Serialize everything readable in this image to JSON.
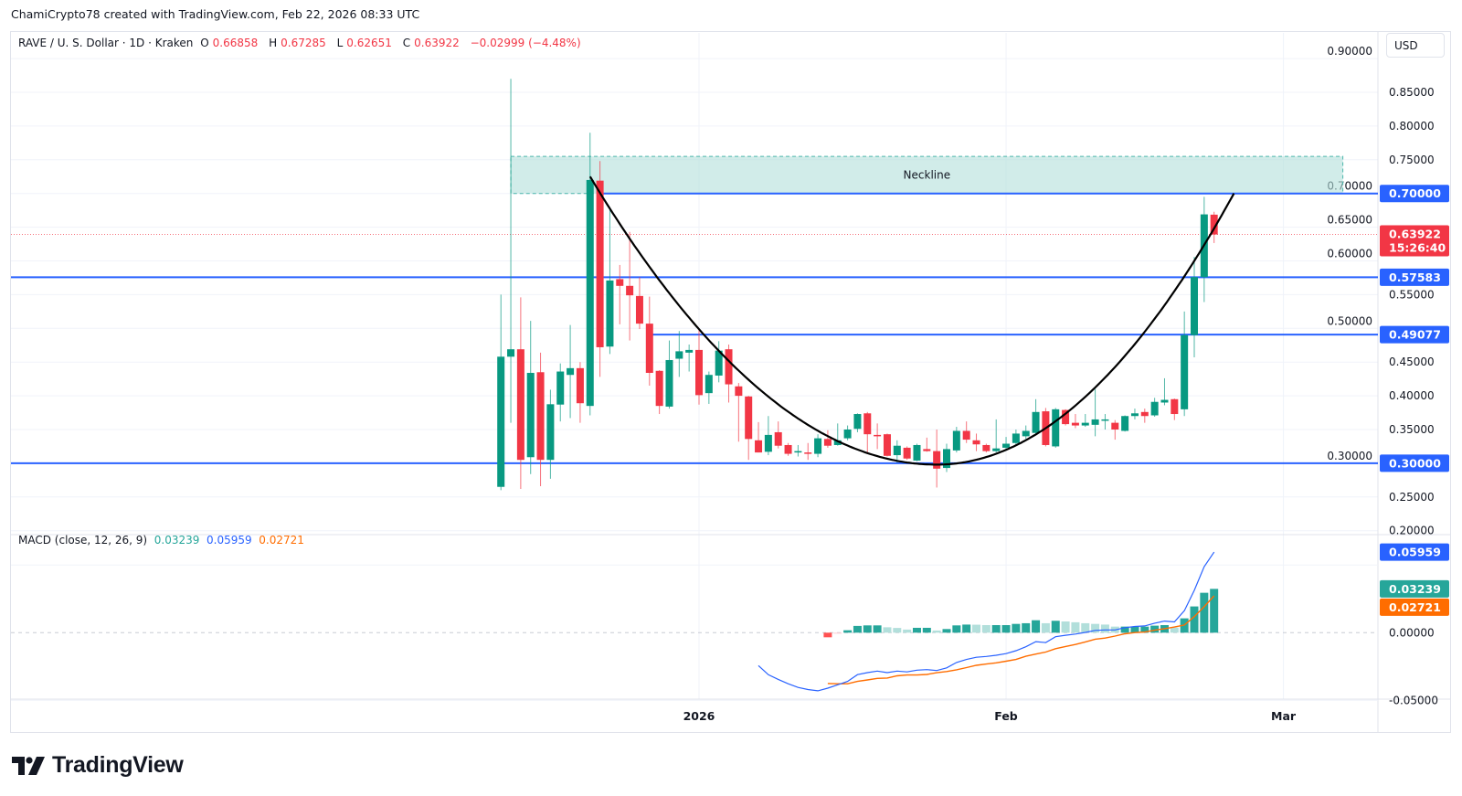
{
  "credit": "ChamiCrypto78 created with TradingView.com, Feb 22, 2026 08:33 UTC",
  "legend": {
    "symbol": "RAVE / U. S. Dollar · 1D · Kraken",
    "o_label": "O",
    "o": "0.66858",
    "h_label": "H",
    "h": "0.67285",
    "l_label": "L",
    "l": "0.62651",
    "c_label": "C",
    "c": "0.63922",
    "change": "−0.02999 (−4.48%)"
  },
  "currency_button": "USD",
  "macd_legend": {
    "title": "MACD (close, 12, 26, 9)",
    "histogram": "0.03239",
    "macd": "0.05959",
    "signal": "0.02721"
  },
  "logo_text": "TradingView",
  "colors": {
    "up": "#089981",
    "down": "#f23645",
    "level": "#2962ff",
    "macd": "#2962ff",
    "signal": "#ff6d00",
    "zone": "#b2dfdb"
  },
  "chart_data": [
    {
      "type": "candlestick",
      "title": "RAVE / U. S. Dollar · 1D · Kraken",
      "ylim": [
        0.2,
        0.9
      ],
      "y_ticks": [
        "0.90000",
        "0.85000",
        "0.80000",
        "0.75000",
        "0.70000",
        "0.65000",
        "0.60000",
        "0.55000",
        "0.50000",
        "0.45000",
        "0.40000",
        "0.35000",
        "0.30000",
        "0.25000",
        "0.20000"
      ],
      "x_ticks": [
        {
          "label": "2026",
          "date": "2026-01-01"
        },
        {
          "label": "Feb",
          "date": "2026-02-01"
        },
        {
          "label": "Mar",
          "date": "2026-03-01"
        }
      ],
      "grid": true,
      "fields": [
        "date",
        "open",
        "high",
        "low",
        "close"
      ],
      "candles": [
        [
          "2025-12-12",
          0.265,
          0.55,
          0.26,
          0.458
        ],
        [
          "2025-12-13",
          0.458,
          0.87,
          0.36,
          0.469
        ],
        [
          "2025-12-14",
          0.469,
          0.546,
          0.262,
          0.305
        ],
        [
          "2025-12-15",
          0.309,
          0.511,
          0.284,
          0.434
        ],
        [
          "2025-12-16",
          0.435,
          0.464,
          0.266,
          0.305
        ],
        [
          "2025-12-17",
          0.305,
          0.409,
          0.277,
          0.3875
        ],
        [
          "2025-12-18",
          0.387,
          0.448,
          0.362,
          0.436
        ],
        [
          "2025-12-19",
          0.431,
          0.505,
          0.367,
          0.441
        ],
        [
          "2025-12-20",
          0.441,
          0.45,
          0.36,
          0.389
        ],
        [
          "2025-12-21",
          0.385,
          0.79,
          0.371,
          0.72
        ],
        [
          "2025-12-22",
          0.719,
          0.748,
          0.428,
          0.472
        ],
        [
          "2025-12-23",
          0.473,
          0.68,
          0.462,
          0.571
        ],
        [
          "2025-12-24",
          0.573,
          0.594,
          0.506,
          0.563
        ],
        [
          "2025-12-25",
          0.563,
          0.643,
          0.482,
          0.549
        ],
        [
          "2025-12-26",
          0.548,
          0.576,
          0.499,
          0.507
        ],
        [
          "2025-12-27",
          0.507,
          0.547,
          0.415,
          0.434
        ],
        [
          "2025-12-28",
          0.437,
          0.438,
          0.373,
          0.385
        ],
        [
          "2025-12-29",
          0.384,
          0.482,
          0.381,
          0.453
        ],
        [
          "2025-12-30",
          0.455,
          0.496,
          0.428,
          0.466
        ],
        [
          "2025-12-31",
          0.464,
          0.476,
          0.436,
          0.468
        ],
        [
          "2026-01-01",
          0.468,
          0.498,
          0.387,
          0.401
        ],
        [
          "2026-01-02",
          0.404,
          0.436,
          0.388,
          0.431
        ],
        [
          "2026-01-03",
          0.43,
          0.481,
          0.42,
          0.467
        ],
        [
          "2026-01-04",
          0.469,
          0.476,
          0.39,
          0.417
        ],
        [
          "2026-01-05",
          0.414,
          0.419,
          0.332,
          0.4
        ],
        [
          "2026-01-06",
          0.399,
          0.4,
          0.305,
          0.336
        ],
        [
          "2026-01-07",
          0.334,
          0.361,
          0.316,
          0.316
        ],
        [
          "2026-01-08",
          0.317,
          0.37,
          0.312,
          0.342
        ],
        [
          "2026-01-09",
          0.346,
          0.362,
          0.322,
          0.326
        ],
        [
          "2026-01-10",
          0.327,
          0.33,
          0.311,
          0.314
        ],
        [
          "2026-01-11",
          0.316,
          0.327,
          0.31,
          0.318
        ],
        [
          "2026-01-12",
          0.316,
          0.33,
          0.305,
          0.314
        ],
        [
          "2026-01-13",
          0.314,
          0.343,
          0.309,
          0.337
        ],
        [
          "2026-01-14",
          0.336,
          0.349,
          0.323,
          0.326
        ],
        [
          "2026-01-15",
          0.327,
          0.359,
          0.326,
          0.334
        ],
        [
          "2026-01-16",
          0.337,
          0.356,
          0.334,
          0.35
        ],
        [
          "2026-01-17",
          0.351,
          0.374,
          0.346,
          0.373
        ],
        [
          "2026-01-18",
          0.374,
          0.376,
          0.316,
          0.343
        ],
        [
          "2026-01-19",
          0.342,
          0.359,
          0.321,
          0.341
        ],
        [
          "2026-01-20",
          0.343,
          0.344,
          0.31,
          0.311
        ],
        [
          "2026-01-21",
          0.312,
          0.334,
          0.301,
          0.326
        ],
        [
          "2026-01-22",
          0.323,
          0.325,
          0.305,
          0.307
        ],
        [
          "2026-01-23",
          0.304,
          0.329,
          0.303,
          0.327
        ],
        [
          "2026-01-24",
          0.321,
          0.338,
          0.317,
          0.318
        ],
        [
          "2026-01-25",
          0.318,
          0.35,
          0.264,
          0.292
        ],
        [
          "2026-01-26",
          0.293,
          0.329,
          0.287,
          0.321
        ],
        [
          "2026-01-27",
          0.319,
          0.354,
          0.316,
          0.348
        ],
        [
          "2026-01-28",
          0.348,
          0.362,
          0.33,
          0.335
        ],
        [
          "2026-01-29",
          0.334,
          0.344,
          0.318,
          0.328
        ],
        [
          "2026-01-30",
          0.327,
          0.329,
          0.316,
          0.318
        ],
        [
          "2026-01-31",
          0.318,
          0.365,
          0.316,
          0.322
        ],
        [
          "2026-02-01",
          0.323,
          0.339,
          0.32,
          0.329
        ],
        [
          "2026-02-02",
          0.33,
          0.35,
          0.327,
          0.344
        ],
        [
          "2026-02-03",
          0.34,
          0.356,
          0.336,
          0.348
        ],
        [
          "2026-02-04",
          0.345,
          0.395,
          0.343,
          0.376
        ],
        [
          "2026-02-05",
          0.377,
          0.382,
          0.325,
          0.327
        ],
        [
          "2026-02-06",
          0.325,
          0.382,
          0.323,
          0.38
        ],
        [
          "2026-02-07",
          0.379,
          0.38,
          0.356,
          0.358
        ],
        [
          "2026-02-08",
          0.36,
          0.373,
          0.352,
          0.356
        ],
        [
          "2026-02-09",
          0.356,
          0.373,
          0.354,
          0.36
        ],
        [
          "2026-02-10",
          0.357,
          0.41,
          0.34,
          0.365
        ],
        [
          "2026-02-11",
          0.364,
          0.373,
          0.35,
          0.365
        ],
        [
          "2026-02-12",
          0.36,
          0.364,
          0.335,
          0.35
        ],
        [
          "2026-02-13",
          0.348,
          0.371,
          0.347,
          0.37
        ],
        [
          "2026-02-14",
          0.37,
          0.381,
          0.365,
          0.374
        ],
        [
          "2026-02-15",
          0.376,
          0.381,
          0.36,
          0.37
        ],
        [
          "2026-02-16",
          0.371,
          0.397,
          0.369,
          0.391
        ],
        [
          "2026-02-17",
          0.39,
          0.426,
          0.386,
          0.394
        ],
        [
          "2026-02-18",
          0.395,
          0.396,
          0.364,
          0.373
        ],
        [
          "2026-02-19",
          0.38,
          0.525,
          0.37,
          0.49
        ],
        [
          "2026-02-20",
          0.49,
          0.606,
          0.457,
          0.576
        ],
        [
          "2026-02-21",
          0.576,
          0.695,
          0.539,
          0.669
        ],
        [
          "2026-02-22",
          0.66858,
          0.67285,
          0.62651,
          0.63922
        ]
      ],
      "current_price": {
        "value": 0.63922,
        "label": "0.63922",
        "countdown": "15:26:40"
      },
      "levels": [
        {
          "value": 0.7,
          "label": "0.70000",
          "from": "2025-12-22"
        },
        {
          "value": 0.57583,
          "label": "0.57583",
          "from": null
        },
        {
          "value": 0.49077,
          "label": "0.49077",
          "from": "2025-12-27"
        },
        {
          "value": 0.3,
          "label": "0.30000",
          "from": null
        }
      ],
      "zone": {
        "label": "Neckline",
        "from": "2025-12-13",
        "to": "2026-03-07",
        "low": 0.7,
        "high": 0.755
      },
      "cup_curve": {
        "start": {
          "date": "2025-12-21",
          "value": 0.725
        },
        "bottom": {
          "date": "2026-01-25",
          "value": 0.298
        },
        "end": {
          "date": "2026-02-24",
          "value": 0.7
        }
      }
    },
    {
      "type": "macd",
      "title": "MACD (close, 12, 26, 9)",
      "ylim": [
        -0.06,
        0.07
      ],
      "y_ticks": [
        "0.00000",
        "-0.05000"
      ],
      "macd_start": "2026-01-07",
      "macd": [
        -0.0243,
        -0.0311,
        -0.0345,
        -0.0378,
        -0.0405,
        -0.042,
        -0.043,
        -0.041,
        -0.0385,
        -0.036,
        -0.031,
        -0.0295,
        -0.0284,
        -0.0295,
        -0.0284,
        -0.029,
        -0.0277,
        -0.0273,
        -0.028,
        -0.026,
        -0.022,
        -0.0198,
        -0.0182,
        -0.0176,
        -0.0167,
        -0.0155,
        -0.0133,
        -0.0104,
        -0.0066,
        -0.0073,
        -0.003,
        -0.0019,
        -0.001,
        0.0002,
        0.0017,
        0.002,
        0.002,
        0.0037,
        0.0046,
        0.005,
        0.007,
        0.0086,
        0.008,
        0.0163,
        0.0313,
        0.0487,
        0.05959
      ],
      "histogram_start": "2026-01-14",
      "histogram": [
        -0.0034,
        -0.0007,
        0.0018,
        0.005,
        0.0054,
        0.0054,
        0.004,
        0.0035,
        0.0023,
        0.0036,
        0.0036,
        0.0016,
        0.0027,
        0.0054,
        0.006,
        0.0059,
        0.0056,
        0.0056,
        0.0056,
        0.0065,
        0.007,
        0.0092,
        0.007,
        0.0088,
        0.0083,
        0.0077,
        0.007,
        0.0065,
        0.006,
        0.0045,
        0.0045,
        0.0045,
        0.0045,
        0.0052,
        0.0056,
        0.0038,
        0.0106,
        0.0194,
        0.0295,
        0.03239
      ],
      "last_labels": {
        "macd": "0.05959",
        "histogram": "0.03239",
        "signal": "0.02721"
      }
    }
  ]
}
